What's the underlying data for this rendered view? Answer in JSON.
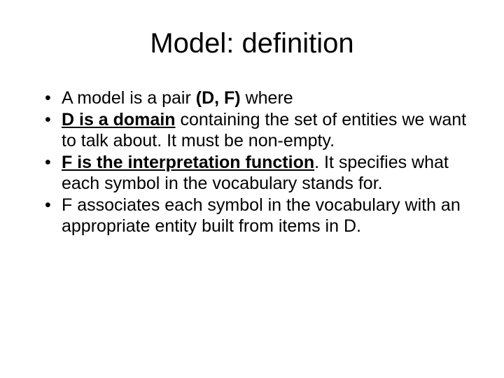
{
  "background_color": "#ffffff",
  "text_color": "#000000",
  "font_family": "Arial",
  "title": {
    "text": "Model: definition",
    "fontsize_pt": 40,
    "weight": "normal",
    "align": "center"
  },
  "bullets": {
    "fontsize_pt": 25,
    "marker": "•",
    "items": [
      {
        "runs": [
          {
            "t": "A model is a pair ",
            "bold": false,
            "underline": false
          },
          {
            "t": "(D, F)",
            "bold": true,
            "underline": false
          },
          {
            "t": " where",
            "bold": false,
            "underline": false
          }
        ]
      },
      {
        "runs": [
          {
            "t": "D is a domain",
            "bold": true,
            "underline": true
          },
          {
            "t": " containing the set of entities we want to talk about. It must be non-empty.",
            "bold": false,
            "underline": false
          }
        ]
      },
      {
        "runs": [
          {
            "t": "F is the interpretation function",
            "bold": true,
            "underline": true
          },
          {
            "t": ". It specifies what each symbol in the vocabulary stands for.",
            "bold": false,
            "underline": false
          }
        ]
      },
      {
        "runs": [
          {
            "t": "F associates each symbol in the vocabulary with an appropriate entity built from items in D.",
            "bold": false,
            "underline": false
          }
        ]
      }
    ]
  }
}
